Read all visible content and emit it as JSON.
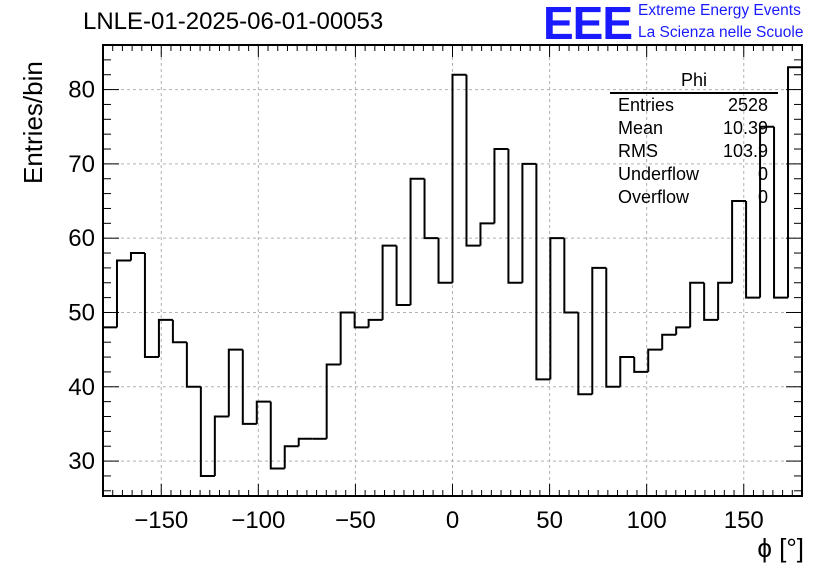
{
  "chart_data": {
    "type": "histogram",
    "title": "LNLE-01-2025-06-01-00053",
    "xlabel": "ϕ [°]",
    "ylabel": "Entries/bin",
    "xlim": [
      -180,
      180
    ],
    "ylim": [
      25.3,
      86
    ],
    "xticks": [
      -150,
      -100,
      -50,
      0,
      50,
      100,
      150
    ],
    "yticks": [
      30,
      40,
      50,
      60,
      70,
      80
    ],
    "grid": true,
    "bin_width": 7.2,
    "x": [
      -176.4,
      -169.2,
      -162,
      -154.8,
      -147.6,
      -140.4,
      -133.2,
      -126,
      -118.8,
      -111.6,
      -104.4,
      -97.2,
      -90,
      -82.8,
      -75.6,
      -68.4,
      -61.2,
      -54,
      -46.8,
      -39.6,
      -32.4,
      -25.2,
      -18,
      -10.8,
      -3.6,
      3.6,
      10.8,
      18,
      25.2,
      32.4,
      39.6,
      46.8,
      54,
      61.2,
      68.4,
      75.6,
      82.8,
      90,
      97.2,
      104.4,
      111.6,
      118.8,
      126,
      133.2,
      140.4,
      147.6,
      154.8,
      162,
      169.2,
      176.4
    ],
    "values": [
      48,
      57,
      58,
      44,
      49,
      46,
      40,
      28,
      36,
      45,
      35,
      38,
      29,
      32,
      33,
      33,
      43,
      50,
      48,
      49,
      59,
      51,
      68,
      60,
      54,
      82,
      59,
      62,
      72,
      54,
      70,
      41,
      60,
      50,
      39,
      56,
      40,
      44,
      42,
      45,
      47,
      48,
      54,
      49,
      54,
      65,
      52,
      75,
      52,
      83
    ],
    "series": [
      {
        "name": "Phi",
        "values": []
      }
    ]
  },
  "stats_box": {
    "name": "Phi",
    "rows": [
      {
        "label": "Entries",
        "value": "2528"
      },
      {
        "label": "Mean",
        "value": "10.39"
      },
      {
        "label": "RMS",
        "value": "103.9"
      },
      {
        "label": "Underflow",
        "value": "0"
      },
      {
        "label": "Overflow",
        "value": "0"
      }
    ]
  },
  "logo": {
    "mark": "EEE",
    "line1": "Extreme Energy Events",
    "line2": "La Scienza nelle Scuole",
    "color": "#1a1aff"
  },
  "colors": {
    "line": "#000000",
    "grid": "#b0b0b0"
  }
}
